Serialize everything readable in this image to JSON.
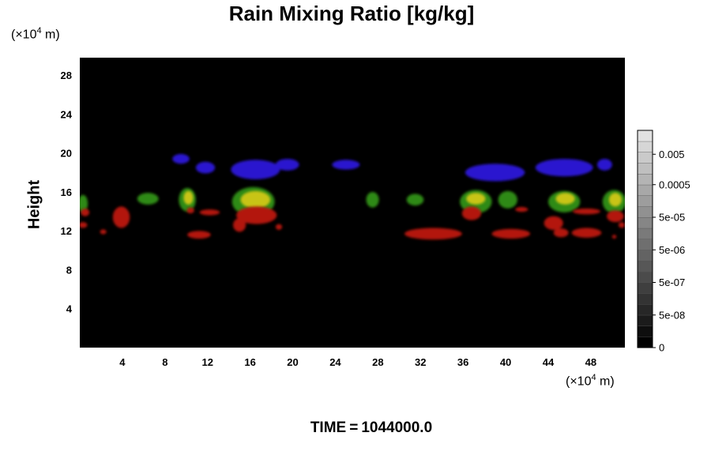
{
  "chart_data": {
    "type": "heatmap",
    "title": "Rain Mixing Ratio [kg/kg]",
    "ylabel": "Height",
    "xunit": {
      "prefix": "(×10",
      "exp": "4",
      "suffix": " m)"
    },
    "yunit": {
      "prefix": "(×10",
      "exp": "4",
      "suffix": " m)"
    },
    "xlim": [
      0,
      51.2
    ],
    "ylim": [
      0,
      29.8
    ],
    "xticks": [
      4,
      8,
      12,
      16,
      20,
      24,
      28,
      32,
      36,
      40,
      44,
      48
    ],
    "yticks": [
      4,
      8,
      12,
      16,
      20,
      24,
      28
    ],
    "background_color": "#000000",
    "colorbar": {
      "labels": [
        "0",
        "5e-08",
        "5e-07",
        "5e-06",
        "5e-05",
        "0.0005",
        "0.005"
      ],
      "levels": 20
    },
    "layers": [
      {
        "color": "#2a18cf",
        "blobs": [
          {
            "x": 9.5,
            "y": 19.4,
            "w": 1.6,
            "h": 1.0
          },
          {
            "x": 11.8,
            "y": 18.5,
            "w": 1.8,
            "h": 1.2
          },
          {
            "x": 16.5,
            "y": 18.3,
            "w": 4.6,
            "h": 2.0
          },
          {
            "x": 19.5,
            "y": 18.8,
            "w": 2.2,
            "h": 1.2
          },
          {
            "x": 25.0,
            "y": 18.8,
            "w": 2.6,
            "h": 1.0
          },
          {
            "x": 39.0,
            "y": 18.0,
            "w": 5.6,
            "h": 1.8
          },
          {
            "x": 45.5,
            "y": 18.5,
            "w": 5.4,
            "h": 1.8
          },
          {
            "x": 49.3,
            "y": 18.8,
            "w": 1.4,
            "h": 1.2
          }
        ]
      },
      {
        "color": "#2f8a12",
        "blobs": [
          {
            "x": 0.3,
            "y": 14.8,
            "w": 0.9,
            "h": 1.8
          },
          {
            "x": 6.4,
            "y": 15.3,
            "w": 2.0,
            "h": 1.2
          },
          {
            "x": 10.1,
            "y": 15.2,
            "w": 1.6,
            "h": 2.4
          },
          {
            "x": 16.3,
            "y": 15.0,
            "w": 4.0,
            "h": 3.0
          },
          {
            "x": 27.5,
            "y": 15.2,
            "w": 1.2,
            "h": 1.6
          },
          {
            "x": 31.5,
            "y": 15.2,
            "w": 1.6,
            "h": 1.2
          },
          {
            "x": 37.2,
            "y": 15.0,
            "w": 3.0,
            "h": 2.4
          },
          {
            "x": 40.2,
            "y": 15.2,
            "w": 1.8,
            "h": 1.8
          },
          {
            "x": 45.5,
            "y": 15.0,
            "w": 3.0,
            "h": 2.2
          },
          {
            "x": 50.2,
            "y": 15.0,
            "w": 2.2,
            "h": 2.4
          }
        ]
      },
      {
        "color": "#c8c414",
        "blobs": [
          {
            "x": 10.2,
            "y": 15.4,
            "w": 0.9,
            "h": 1.4
          },
          {
            "x": 16.5,
            "y": 15.2,
            "w": 2.8,
            "h": 1.8
          },
          {
            "x": 37.2,
            "y": 15.3,
            "w": 1.8,
            "h": 1.2
          },
          {
            "x": 45.6,
            "y": 15.3,
            "w": 1.8,
            "h": 1.2
          },
          {
            "x": 50.3,
            "y": 15.2,
            "w": 1.2,
            "h": 1.4
          }
        ]
      },
      {
        "color": "#b3150e",
        "blobs": [
          {
            "x": 0.5,
            "y": 13.9,
            "w": 0.8,
            "h": 0.8
          },
          {
            "x": 0.3,
            "y": 12.6,
            "w": 0.8,
            "h": 0.6
          },
          {
            "x": 2.2,
            "y": 11.9,
            "w": 0.6,
            "h": 0.5
          },
          {
            "x": 3.9,
            "y": 13.4,
            "w": 1.6,
            "h": 2.2
          },
          {
            "x": 10.4,
            "y": 14.1,
            "w": 0.7,
            "h": 0.6
          },
          {
            "x": 12.2,
            "y": 13.9,
            "w": 1.9,
            "h": 0.6
          },
          {
            "x": 11.2,
            "y": 11.6,
            "w": 2.2,
            "h": 0.8
          },
          {
            "x": 16.6,
            "y": 13.6,
            "w": 3.8,
            "h": 1.8
          },
          {
            "x": 15.0,
            "y": 12.6,
            "w": 1.2,
            "h": 1.4
          },
          {
            "x": 18.7,
            "y": 12.4,
            "w": 0.6,
            "h": 0.6
          },
          {
            "x": 33.2,
            "y": 11.7,
            "w": 5.4,
            "h": 1.2
          },
          {
            "x": 36.8,
            "y": 13.8,
            "w": 1.8,
            "h": 1.4
          },
          {
            "x": 40.5,
            "y": 11.7,
            "w": 3.6,
            "h": 1.0
          },
          {
            "x": 41.5,
            "y": 14.2,
            "w": 1.2,
            "h": 0.5
          },
          {
            "x": 44.5,
            "y": 12.8,
            "w": 1.8,
            "h": 1.4
          },
          {
            "x": 45.2,
            "y": 11.8,
            "w": 1.4,
            "h": 0.9
          },
          {
            "x": 47.6,
            "y": 11.8,
            "w": 2.8,
            "h": 1.0
          },
          {
            "x": 47.6,
            "y": 14.0,
            "w": 2.6,
            "h": 0.6
          },
          {
            "x": 50.3,
            "y": 13.5,
            "w": 1.6,
            "h": 1.2
          },
          {
            "x": 50.9,
            "y": 12.6,
            "w": 0.6,
            "h": 0.6
          },
          {
            "x": 50.2,
            "y": 11.4,
            "w": 0.4,
            "h": 0.4
          }
        ]
      }
    ]
  },
  "footer": {
    "label": "TIME",
    "eq": "=",
    "value": "1044000.0"
  }
}
